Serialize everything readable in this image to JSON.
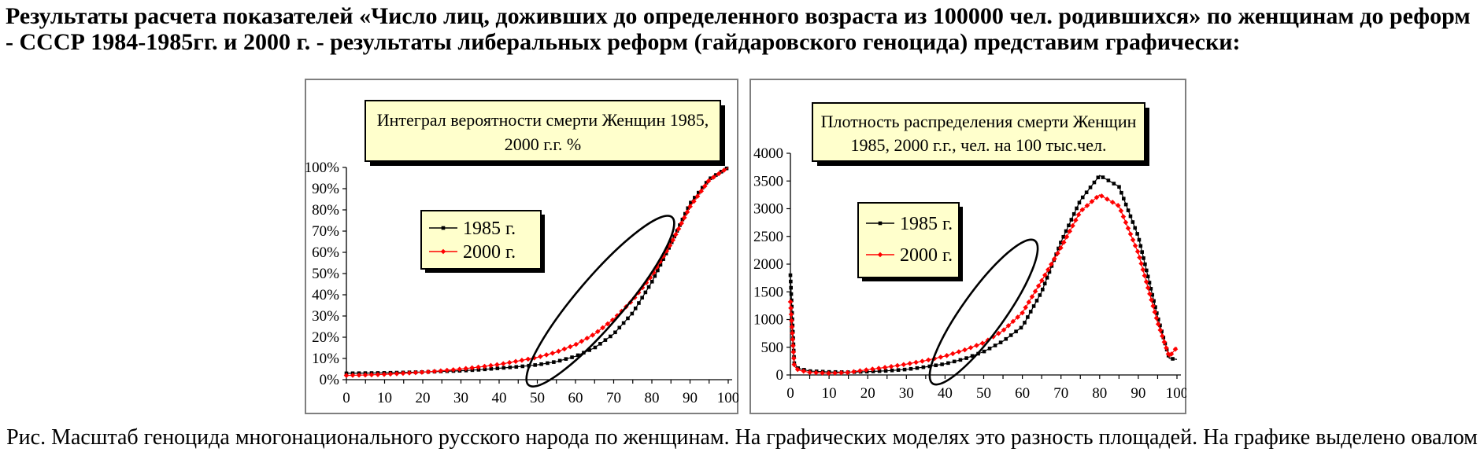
{
  "page": {
    "header": "Результаты расчета показателей «Число лиц, доживших до определенного возраста из 100000 чел. родившихся» по женщинам до реформ - СССР 1984-1985гг. и 2000 г. - результаты либеральных реформ (гайдаровского геноцида) представим графически:",
    "caption": "Рис. Масштаб геноцида многонационального русского народа по женщинам. На графических моделях это разность площадей. На графике выделено овалом"
  },
  "colors": {
    "series_1985": "#000000",
    "series_2000": "#ff0000",
    "box_fill": "#ffffcc",
    "box_border": "#000000",
    "box_shadow": "#000000",
    "frame": "#7f7f7f",
    "axis": "#000000"
  },
  "chart_data": [
    {
      "type": "line",
      "title": "Интеграл вероятности смерти Женщин 1985, 2000 г.г. %",
      "title_lines": [
        "Интеграл вероятности смерти Женщин 1985,",
        "2000 г.г. %"
      ],
      "xlabel": "",
      "ylabel": "",
      "xlim": [
        0,
        100
      ],
      "ylim": [
        0,
        100
      ],
      "grid": false,
      "legend_position": "center-left",
      "xtick_labels": [
        "0",
        "10",
        "20",
        "30",
        "40",
        "50",
        "60",
        "70",
        "80",
        "90",
        "100"
      ],
      "ytick_labels": [
        "0%",
        "10%",
        "20%",
        "30%",
        "40%",
        "50%",
        "60%",
        "70%",
        "80%",
        "90%",
        "100%"
      ],
      "x": [
        0,
        5,
        10,
        15,
        20,
        25,
        30,
        35,
        40,
        45,
        50,
        55,
        60,
        65,
        70,
        75,
        80,
        85,
        90,
        95,
        100
      ],
      "series": [
        {
          "name": "1985 г.",
          "color": "#000000",
          "marker": "square",
          "values": [
            3,
            3.1,
            3.2,
            3.4,
            3.6,
            3.9,
            4.2,
            4.7,
            5.4,
            6.1,
            7,
            8.5,
            11,
            15,
            21.5,
            31.5,
            46,
            64,
            83,
            94.5,
            100
          ]
        },
        {
          "name": "2000 г.",
          "color": "#ff0000",
          "marker": "diamond",
          "values": [
            2,
            2.2,
            2.5,
            3,
            3.5,
            4.2,
            5,
            6,
            7.2,
            8.8,
            10.5,
            13,
            16.5,
            21.5,
            28.5,
            37.5,
            49,
            64,
            81.5,
            94,
            100
          ]
        }
      ],
      "oval_annotation": {
        "x1": 48,
        "y1": -2,
        "x2": 85,
        "y2": 76
      }
    },
    {
      "type": "line",
      "title": "Плотность распределения смерти Женщин 1985, 2000 г.г., чел. на 100 тыс.чел.",
      "title_lines": [
        "Плотность распределения смерти Женщин",
        "1985, 2000 г.г., чел. на 100 тыс.чел."
      ],
      "xlabel": "",
      "ylabel": "",
      "xlim": [
        0,
        100
      ],
      "ylim": [
        0,
        4000
      ],
      "grid": false,
      "legend_position": "center-left",
      "xtick_labels": [
        "0",
        "10",
        "20",
        "30",
        "40",
        "50",
        "60",
        "70",
        "80",
        "90",
        "100"
      ],
      "ytick_labels": [
        "0",
        "500",
        "1000",
        "1500",
        "2000",
        "2500",
        "3000",
        "3500",
        "4000"
      ],
      "x": [
        0,
        1,
        2,
        5,
        10,
        15,
        20,
        25,
        30,
        35,
        40,
        45,
        50,
        55,
        60,
        65,
        70,
        75,
        80,
        85,
        90,
        95,
        98,
        100
      ],
      "series": [
        {
          "name": "1985 г.",
          "color": "#000000",
          "marker": "square",
          "values": [
            1800,
            210,
            120,
            70,
            55,
            50,
            60,
            75,
            100,
            145,
            200,
            290,
            420,
            610,
            870,
            1500,
            2400,
            3150,
            3600,
            3400,
            2500,
            1050,
            300,
            280
          ]
        },
        {
          "name": "2000 г.",
          "color": "#ff0000",
          "marker": "diamond",
          "values": [
            1320,
            160,
            90,
            45,
            30,
            45,
            95,
            140,
            195,
            260,
            340,
            450,
            580,
            800,
            1120,
            1700,
            2300,
            2950,
            3250,
            3050,
            2200,
            950,
            330,
            500
          ]
        }
      ],
      "oval_annotation": {
        "x1": 37,
        "y1": -130,
        "x2": 63,
        "y2": 2400
      }
    }
  ]
}
